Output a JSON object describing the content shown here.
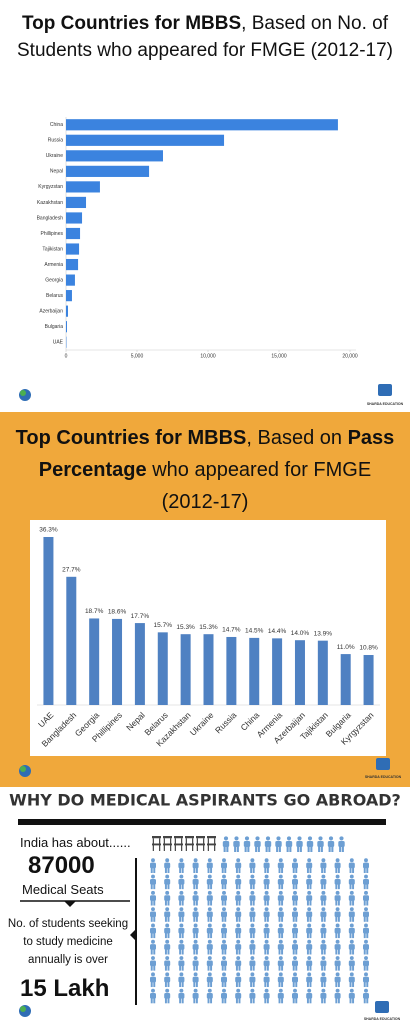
{
  "chart_data": [
    {
      "type": "hbar",
      "title": [
        {
          "text": "Top Countries for MBBS",
          "bold": true
        },
        {
          "text": ", Based on No. of Students who appeared for FMGE (2012-17)",
          "bold": false
        }
      ],
      "categories": [
        "China",
        "Russia",
        "Ukraine",
        "Nepal",
        "Kyrgyzstan",
        "Kazakhstan",
        "Bangladesh",
        "Phillipines",
        "Tajikistan",
        "Armenia",
        "Georgia",
        "Belarus",
        "Azerbaijan",
        "Bulgaria",
        "UAE"
      ],
      "values": [
        19150,
        11130,
        6830,
        5850,
        2390,
        1410,
        1130,
        990,
        920,
        850,
        630,
        420,
        140,
        70,
        30
      ],
      "color": "#3b83df",
      "xlim": [
        0,
        20000
      ],
      "xticks": [
        0,
        {
          "value": 5000,
          "label": "5,000"
        },
        {
          "value": 10000,
          "label": "10,000"
        },
        {
          "value": 15000,
          "label": "15,000"
        },
        {
          "value": 20000,
          "label": "20,000"
        }
      ],
      "grid": false
    },
    {
      "type": "bar",
      "title": [
        {
          "text": "Top Countries for MBBS",
          "bold": true
        },
        {
          "text": ", Based on ",
          "bold": false
        },
        {
          "text": "Pass Percentage",
          "bold": true
        },
        {
          "text": " who appeared for FMGE (2012-17)",
          "bold": false
        }
      ],
      "categories": [
        "UAE",
        "Bangladesh",
        "Georgia",
        "Phillipines",
        "Nepal",
        "Belarus",
        "Kazakhstan",
        "Ukraine",
        "Russia",
        "China",
        "Armenia",
        "Azerbaijan",
        "Tajikistan",
        "Bulgaria",
        "Kyrgyzstan"
      ],
      "values": [
        36.3,
        27.7,
        18.7,
        18.6,
        17.7,
        15.7,
        15.3,
        15.3,
        14.7,
        14.5,
        14.4,
        14.0,
        13.9,
        11.0,
        10.8
      ],
      "value_labels": [
        "36.3%",
        "27.7%",
        "18.7%",
        "18.6%",
        "17.7%",
        "15.7%",
        "15.3%",
        "15.3%",
        "14.7%",
        "14.5%",
        "14.4%",
        "14.0%",
        "13.9%",
        "11.0%",
        "10.8%"
      ],
      "color": "#4f81c2"
    }
  ],
  "brand": "SHARDA EDUCATION",
  "section3": {
    "title": "WHY DO MEDICAL ASPIRANTS GO ABROAD?",
    "intro": "India has about......",
    "seats": "87000",
    "seats_label": "Medical Seats",
    "students_text": "No. of students seeking to study medicine annually is over",
    "students": "15 Lakh"
  }
}
